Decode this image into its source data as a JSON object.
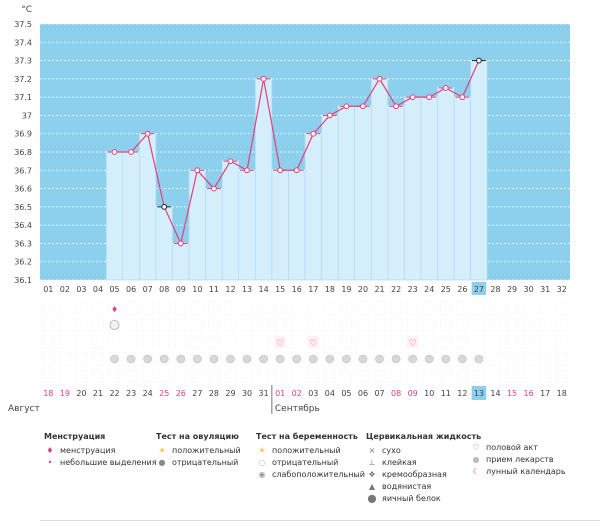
{
  "chart_data": {
    "type": "line",
    "unit": "°C",
    "ylim": [
      36.1,
      37.5
    ],
    "yticks": [
      "37.5",
      "37.4",
      "37.3",
      "37.2",
      "37.1",
      "37",
      "36.9",
      "36.8",
      "36.7",
      "36.6",
      "36.5",
      "36.4",
      "36.3",
      "36.2",
      "36.1"
    ],
    "cycle_days": [
      "01",
      "02",
      "03",
      "04",
      "05",
      "06",
      "07",
      "08",
      "09",
      "10",
      "11",
      "12",
      "13",
      "14",
      "15",
      "16",
      "17",
      "18",
      "19",
      "20",
      "21",
      "22",
      "23",
      "24",
      "25",
      "26",
      "27",
      "28",
      "29",
      "30",
      "31",
      "32"
    ],
    "dates": [
      "18",
      "19",
      "20",
      "21",
      "22",
      "23",
      "24",
      "25",
      "26",
      "27",
      "28",
      "29",
      "30",
      "31",
      "01",
      "02",
      "03",
      "04",
      "05",
      "06",
      "07",
      "08",
      "09",
      "10",
      "11",
      "12",
      "13",
      "14",
      "15",
      "16",
      "17",
      "18"
    ],
    "red_dates": [
      0,
      1,
      7,
      8,
      14,
      15,
      21,
      22,
      28,
      29
    ],
    "current_day_index": 26,
    "months": [
      "Август",
      "Сентябрь"
    ],
    "temperatures": [
      null,
      null,
      null,
      null,
      36.8,
      36.8,
      36.9,
      36.5,
      36.3,
      36.7,
      36.6,
      36.75,
      36.7,
      37.2,
      36.7,
      36.7,
      36.9,
      37.0,
      37.05,
      37.05,
      37.2,
      37.05,
      37.1,
      37.1,
      37.15,
      37.1,
      37.3,
      null,
      null,
      null,
      null,
      null
    ],
    "black_markers": [
      7,
      26
    ],
    "menstruation_day_index": 4,
    "ovulation_negative_day_index": 4,
    "intercourse_days": [
      14,
      16,
      22
    ],
    "pregnancy_negative_days": [
      4,
      5,
      6,
      7,
      8,
      9,
      10,
      11,
      12,
      13,
      14,
      15,
      16,
      17,
      18,
      19,
      20,
      21,
      22,
      23,
      24,
      25,
      26
    ]
  },
  "legend": {
    "menstruation": {
      "title": "Менструация",
      "items": [
        "менструация",
        "небольшие выделения"
      ]
    },
    "ovulation": {
      "title": "Тест на овуляцию",
      "items": [
        "положительный",
        "отрицательный"
      ]
    },
    "pregnancy": {
      "title": "Тест на беременность",
      "items": [
        "положительный",
        "отрицательный",
        "слабоположительный"
      ]
    },
    "cervical": {
      "title": "Цервикальная жидкость",
      "items": [
        "сухо",
        "клейкая",
        "кремообразная",
        "водянистая",
        "яичный белок"
      ]
    },
    "other": {
      "items": [
        "половой акт",
        "прием лекарств",
        "лунный календарь"
      ]
    }
  },
  "colors": {
    "sky": "#8dd0ee",
    "bar": "#d4eefb",
    "bar_stroke": "#a9d8ef",
    "line": "#e2407a",
    "accent": "#e2407a",
    "highlight": "#8dd0ee"
  }
}
